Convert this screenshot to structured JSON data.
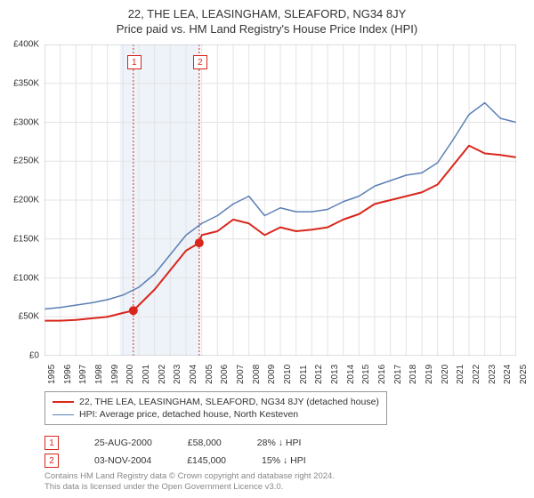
{
  "title": "22, THE LEA, LEASINGHAM, SLEAFORD, NG34 8JY",
  "subtitle": "Price paid vs. HM Land Registry's House Price Index (HPI)",
  "chart": {
    "type": "line",
    "background_color": "#ffffff",
    "grid_color": "#e3e3e3",
    "grid_width": 1,
    "y_axis": {
      "label_prefix": "£",
      "label_suffix": "K",
      "min": 0,
      "max": 400,
      "ticks": [
        0,
        50,
        100,
        150,
        200,
        250,
        300,
        350,
        400
      ],
      "tick_labels": [
        "£0",
        "£50K",
        "£100K",
        "£150K",
        "£200K",
        "£250K",
        "£300K",
        "£350K",
        "£400K"
      ],
      "fontsize": 10
    },
    "x_axis": {
      "min": 1995,
      "max": 2025,
      "ticks": [
        1995,
        1996,
        1997,
        1998,
        1999,
        2000,
        2001,
        2002,
        2003,
        2004,
        2005,
        2006,
        2007,
        2008,
        2009,
        2010,
        2011,
        2012,
        2013,
        2014,
        2015,
        2016,
        2017,
        2018,
        2019,
        2020,
        2021,
        2022,
        2023,
        2024,
        2025
      ],
      "labels_rotation": -90,
      "fontsize": 10
    },
    "bands": [
      {
        "x_from": 1999.8,
        "x_to": 2004.9,
        "color": "#eef3fa"
      }
    ],
    "vlines": [
      {
        "x": 2000.65,
        "color": "#d9261c",
        "dash": "2,2",
        "label": "1"
      },
      {
        "x": 2004.84,
        "color": "#d9261c",
        "dash": "2,2",
        "label": "2"
      }
    ],
    "series": [
      {
        "name": "price_paid",
        "label": "22, THE LEA, LEASINGHAM, SLEAFORD, NG34 8JY (detached house)",
        "color": "#d9261c",
        "line_width": 2,
        "points": [
          [
            1995,
            45
          ],
          [
            1996,
            45
          ],
          [
            1997,
            46
          ],
          [
            1998,
            48
          ],
          [
            1999,
            50
          ],
          [
            2000,
            55
          ],
          [
            2000.65,
            58
          ],
          [
            2001,
            65
          ],
          [
            2002,
            85
          ],
          [
            2003,
            110
          ],
          [
            2004,
            135
          ],
          [
            2004.84,
            145
          ],
          [
            2005,
            155
          ],
          [
            2006,
            160
          ],
          [
            2007,
            175
          ],
          [
            2008,
            170
          ],
          [
            2009,
            155
          ],
          [
            2010,
            165
          ],
          [
            2011,
            160
          ],
          [
            2012,
            162
          ],
          [
            2013,
            165
          ],
          [
            2014,
            175
          ],
          [
            2015,
            182
          ],
          [
            2016,
            195
          ],
          [
            2017,
            200
          ],
          [
            2018,
            205
          ],
          [
            2019,
            210
          ],
          [
            2020,
            220
          ],
          [
            2021,
            245
          ],
          [
            2022,
            270
          ],
          [
            2023,
            260
          ],
          [
            2024,
            258
          ],
          [
            2025,
            255
          ]
        ],
        "markers": [
          {
            "x": 2000.65,
            "y": 58,
            "color": "#d9261c",
            "size": 5
          },
          {
            "x": 2004.84,
            "y": 145,
            "color": "#d9261c",
            "size": 5
          }
        ]
      },
      {
        "name": "hpi",
        "label": "HPI: Average price, detached house, North Kesteven",
        "color": "#5b7fb5",
        "line_width": 1.5,
        "points": [
          [
            1995,
            60
          ],
          [
            1996,
            62
          ],
          [
            1997,
            65
          ],
          [
            1998,
            68
          ],
          [
            1999,
            72
          ],
          [
            2000,
            78
          ],
          [
            2001,
            88
          ],
          [
            2002,
            105
          ],
          [
            2003,
            130
          ],
          [
            2004,
            155
          ],
          [
            2005,
            170
          ],
          [
            2006,
            180
          ],
          [
            2007,
            195
          ],
          [
            2008,
            205
          ],
          [
            2009,
            180
          ],
          [
            2010,
            190
          ],
          [
            2011,
            185
          ],
          [
            2012,
            185
          ],
          [
            2013,
            188
          ],
          [
            2014,
            198
          ],
          [
            2015,
            205
          ],
          [
            2016,
            218
          ],
          [
            2017,
            225
          ],
          [
            2018,
            232
          ],
          [
            2019,
            235
          ],
          [
            2020,
            248
          ],
          [
            2021,
            278
          ],
          [
            2022,
            310
          ],
          [
            2023,
            325
          ],
          [
            2024,
            305
          ],
          [
            2025,
            300
          ]
        ]
      }
    ]
  },
  "legend": {
    "border_color": "#999999",
    "fontsize": 10.5,
    "items": [
      {
        "color": "#d9261c",
        "width": 2,
        "label": "22, THE LEA, LEASINGHAM, SLEAFORD, NG34 8JY (detached house)"
      },
      {
        "color": "#5b7fb5",
        "width": 1.5,
        "label": "HPI: Average price, detached house, North Kesteven"
      }
    ]
  },
  "marker_table": {
    "rows": [
      {
        "badge": "1",
        "date": "25-AUG-2000",
        "price": "£58,000",
        "delta": "28% ↓ HPI"
      },
      {
        "badge": "2",
        "date": "03-NOV-2004",
        "price": "£145,000",
        "delta": "15% ↓ HPI"
      }
    ]
  },
  "footer": {
    "line1": "Contains HM Land Registry data © Crown copyright and database right 2024.",
    "line2": "This data is licensed under the Open Government Licence v3.0.",
    "color": "#888888",
    "fontsize": 9.5
  }
}
